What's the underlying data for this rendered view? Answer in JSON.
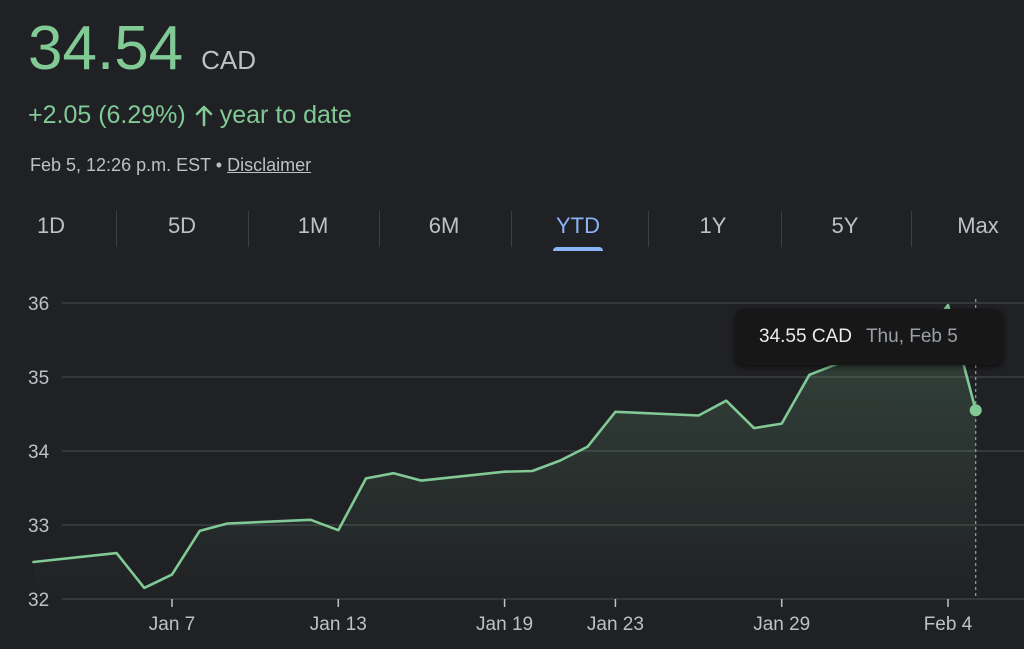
{
  "header": {
    "price": "34.54",
    "currency": "CAD",
    "change": "+2.05 (6.29%)",
    "change_period": "year to date",
    "timestamp": "Feb 5, 12:26 p.m. EST",
    "separator": "•",
    "disclaimer": "Disclaimer"
  },
  "tabs": [
    {
      "label": "1D",
      "active": false
    },
    {
      "label": "5D",
      "active": false
    },
    {
      "label": "1M",
      "active": false
    },
    {
      "label": "6M",
      "active": false
    },
    {
      "label": "YTD",
      "active": true
    },
    {
      "label": "1Y",
      "active": false
    },
    {
      "label": "5Y",
      "active": false
    },
    {
      "label": "Max",
      "active": false
    }
  ],
  "tooltip": {
    "value": "34.55 CAD",
    "date": "Thu, Feb 5"
  },
  "colors": {
    "line": "#81c995",
    "accent": "#8ab4f8",
    "grid": "#3c4043",
    "text": "#bdc1c6"
  },
  "chart_data": {
    "type": "area",
    "ylim": [
      32,
      36
    ],
    "yticks": [
      32,
      33,
      34,
      35,
      36
    ],
    "xtick_labels": [
      {
        "label": "Jan 7",
        "date": "2026-01-07"
      },
      {
        "label": "Jan 13",
        "date": "2026-01-13"
      },
      {
        "label": "Jan 19",
        "date": "2026-01-19"
      },
      {
        "label": "Jan 23",
        "date": "2026-01-23"
      },
      {
        "label": "Jan 29",
        "date": "2026-01-29"
      },
      {
        "label": "Feb 4",
        "date": "2026-02-04"
      }
    ],
    "x": [
      "2026-01-02",
      "2026-01-05",
      "2026-01-06",
      "2026-01-07",
      "2026-01-08",
      "2026-01-09",
      "2026-01-12",
      "2026-01-13",
      "2026-01-14",
      "2026-01-15",
      "2026-01-16",
      "2026-01-19",
      "2026-01-20",
      "2026-01-21",
      "2026-01-22",
      "2026-01-23",
      "2026-01-26",
      "2026-01-27",
      "2026-01-28",
      "2026-01-29",
      "2026-01-30",
      "2026-02-02",
      "2026-02-03",
      "2026-02-04",
      "2026-02-05"
    ],
    "values": [
      32.5,
      32.62,
      32.15,
      32.33,
      32.92,
      33.02,
      33.07,
      32.93,
      33.63,
      33.7,
      33.6,
      33.72,
      33.73,
      33.87,
      34.06,
      34.53,
      34.48,
      34.68,
      34.31,
      34.37,
      35.03,
      35.47,
      35.47,
      35.97,
      34.55
    ],
    "grid": true
  }
}
